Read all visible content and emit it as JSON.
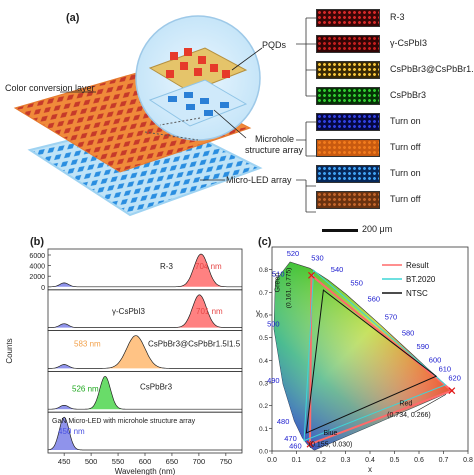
{
  "panel_a": {
    "label": "(a)",
    "callouts": {
      "color_conversion_layer": "Color conversion layer",
      "pqds": "PQDs",
      "microhole": "Microhole",
      "structure_array": "structure array",
      "micro_led_array": "Micro-LED array"
    },
    "thumbnails": [
      {
        "label": "R-3",
        "color": "#d62828",
        "bg": "#3a0606"
      },
      {
        "label": "γ-CsPbI3",
        "color": "#c21e1e",
        "bg": "#330505"
      },
      {
        "label": "CsPbBr3@CsPbBr1.5I1.5",
        "color": "#f2c037",
        "bg": "#3a2a05"
      },
      {
        "label": "CsPbBr3",
        "color": "#2fc92f",
        "bg": "#063306"
      },
      {
        "label": "Turn on",
        "color": "#2f3fe0",
        "bg": "#050844"
      },
      {
        "label": "Turn off",
        "color": "#f07a1c",
        "bg": "#c85a10"
      },
      {
        "label": "Turn on",
        "color": "#3fa0f0",
        "bg": "#06285a"
      },
      {
        "label": "Turn off",
        "color": "#c0642a",
        "bg": "#6a3210"
      }
    ],
    "scale_bar": "200 μm"
  },
  "panel_b": {
    "label": "(b)",
    "ylabel": "Counts",
    "xlabel": "Wavelength (nm)",
    "xticks": [
      "450",
      "500",
      "550",
      "600",
      "650",
      "700",
      "750"
    ],
    "yticks": [
      "6000",
      "4000",
      "2000",
      "0"
    ],
    "rows": [
      {
        "name": "R-3",
        "peak": "704 nm",
        "color": "#ff6b6b"
      },
      {
        "name": "γ-CsPbI3",
        "peak": "701 nm",
        "color": "#ff6b6b"
      },
      {
        "name": "CsPbBr3@CsPbBr1.5I1.5",
        "peak": "583 nm",
        "color": "#ffb870"
      },
      {
        "name": "CsPbBr3",
        "peak": "526 nm",
        "color": "#4fd64f"
      },
      {
        "name": "GaN Micro-LED with microhole structure array",
        "peak": "450 nm",
        "color": "#7b80e8"
      }
    ]
  },
  "panel_c": {
    "label": "(c)",
    "xlabel": "x",
    "ylabel": "y",
    "xticks": [
      "0.0",
      "0.1",
      "0.2",
      "0.3",
      "0.4",
      "0.5",
      "0.6",
      "0.7",
      "0.8"
    ],
    "yticks": [
      "0.0",
      "0.1",
      "0.2",
      "0.3",
      "0.4",
      "0.5",
      "0.6",
      "0.7",
      "0.8"
    ],
    "legend": [
      {
        "name": "Result",
        "color": "#ff6a6a"
      },
      {
        "name": "BT.2020",
        "color": "#3fd6d6"
      },
      {
        "name": "NTSC",
        "color": "#111111"
      }
    ],
    "wavelength_labels": [
      "460",
      "470",
      "480",
      "490",
      "500",
      "510",
      "520",
      "530",
      "540",
      "550",
      "560",
      "570",
      "580",
      "590",
      "600",
      "610",
      "620"
    ],
    "points": {
      "green_name": "Green",
      "green_coord": "(0.161, 0.775)",
      "red_name": "Red",
      "red_coord": "(0.734, 0.266)",
      "blue_name": "Blue",
      "blue_coord": "(0.155, 0.030)"
    }
  },
  "chart_data": [
    {
      "type": "line",
      "xlabel": "Wavelength (nm)",
      "ylabel": "Counts",
      "xlim": [
        420,
        780
      ],
      "series": [
        {
          "name": "R-3",
          "peak_nm": 704,
          "max_counts": 6000
        },
        {
          "name": "γ-CsPbI3",
          "peak_nm": 701,
          "max_counts": 5000
        },
        {
          "name": "CsPbBr3@CsPbBr1.5I1.5",
          "peak_nm": 583,
          "max_counts": 4000
        },
        {
          "name": "CsPbBr3",
          "peak_nm": 526,
          "max_counts": 5500
        },
        {
          "name": "GaN Micro-LED with microhole structure array",
          "peak_nm": 450,
          "max_counts": 6000
        }
      ]
    },
    {
      "type": "scatter",
      "xlabel": "x",
      "ylabel": "y",
      "xlim": [
        0.0,
        0.8
      ],
      "ylim": [
        0.0,
        0.9
      ],
      "series": [
        {
          "name": "Result",
          "points": [
            [
              0.161,
              0.775
            ],
            [
              0.734,
              0.266
            ],
            [
              0.155,
              0.03
            ]
          ]
        },
        {
          "name": "BT.2020",
          "points": [
            [
              0.17,
              0.797
            ],
            [
              0.708,
              0.292
            ],
            [
              0.131,
              0.046
            ]
          ]
        },
        {
          "name": "NTSC",
          "points": [
            [
              0.21,
              0.71
            ],
            [
              0.67,
              0.33
            ],
            [
              0.14,
              0.08
            ]
          ]
        }
      ]
    }
  ]
}
